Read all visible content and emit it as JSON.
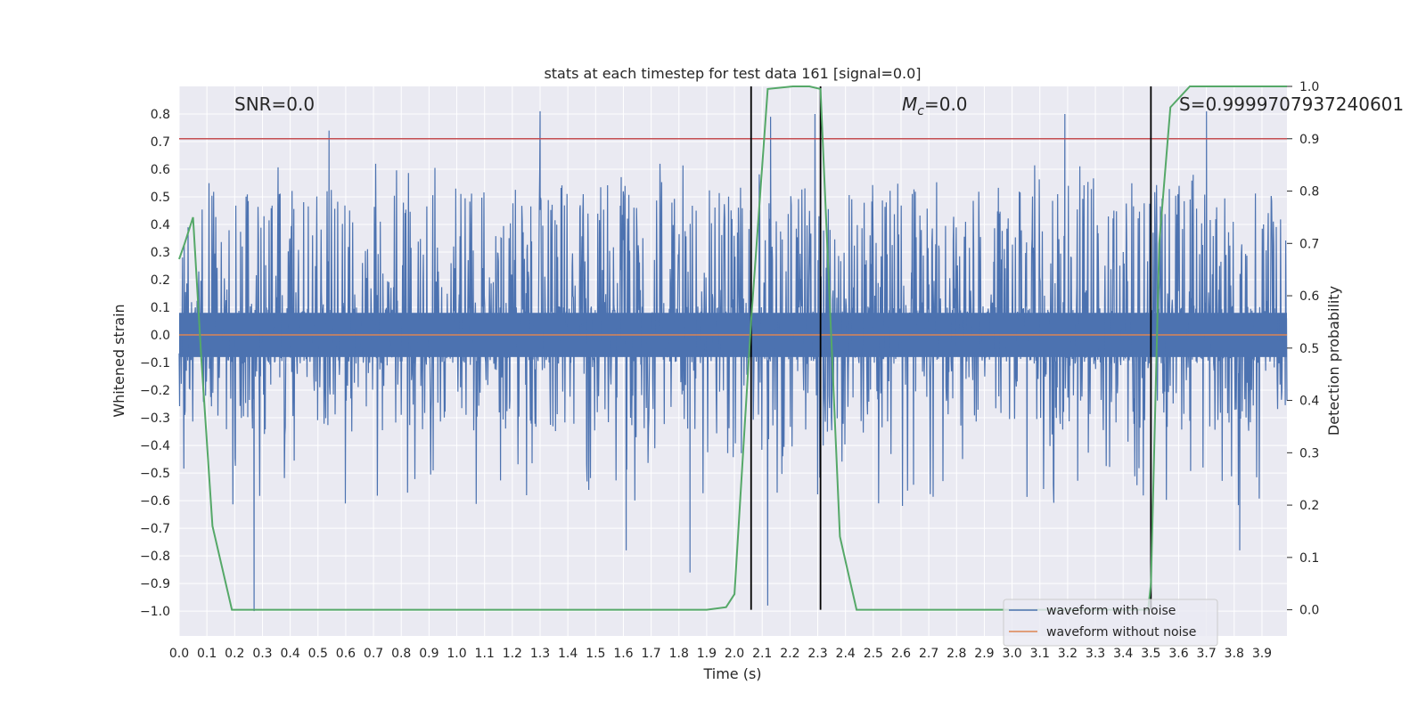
{
  "chart_data": {
    "type": "line",
    "title": "stats at each timestep for test data 161 [signal=0.0]",
    "xlabel": "Time (s)",
    "ylabel": "Whitened strain",
    "y2label": "Detection probability",
    "xlim": [
      0.0,
      3.99
    ],
    "ylim": [
      -1.09,
      0.9
    ],
    "y2lim": [
      -0.05,
      1.0
    ],
    "x_ticks": [
      "0.0",
      "0.1",
      "0.2",
      "0.3",
      "0.4",
      "0.5",
      "0.6",
      "0.7",
      "0.8",
      "0.9",
      "1.0",
      "1.1",
      "1.2",
      "1.3",
      "1.4",
      "1.5",
      "1.6",
      "1.7",
      "1.8",
      "1.9",
      "2.0",
      "2.1",
      "2.2",
      "2.3",
      "2.4",
      "2.5",
      "2.6",
      "2.7",
      "2.8",
      "2.9",
      "3.0",
      "3.1",
      "3.2",
      "3.3",
      "3.4",
      "3.5",
      "3.6",
      "3.7",
      "3.8",
      "3.9"
    ],
    "y_ticks": [
      "0.8",
      "0.7",
      "0.6",
      "0.5",
      "0.4",
      "0.3",
      "0.2",
      "0.1",
      "0.0",
      "−0.1",
      "−0.2",
      "−0.3",
      "−0.4",
      "−0.5",
      "−0.6",
      "−0.7",
      "−0.8",
      "−0.9",
      "−1.0"
    ],
    "y2_ticks": [
      "1.0",
      "0.9",
      "0.8",
      "0.7",
      "0.6",
      "0.5",
      "0.4",
      "0.3",
      "0.2",
      "0.1",
      "0.0"
    ],
    "grid": true,
    "legend_position": "lower right",
    "annotations": {
      "snr": "SNR=0.0",
      "mc_symbol": "M",
      "mc_subscript": "c",
      "mc_value": "=0.0",
      "s": "S=0.9999707937240601"
    },
    "threshold": {
      "axis": "y2",
      "value": 0.9,
      "color": "#c44e52"
    },
    "vlines_x": [
      2.06,
      2.31,
      3.5
    ],
    "series": [
      {
        "name": "waveform with noise",
        "axis": "y",
        "color": "#4c72b0",
        "kind": "noise",
        "stats": {
          "core_amplitude": 0.08,
          "typical_range": [
            -0.35,
            0.55
          ],
          "min": -1.0,
          "max": 0.81
        },
        "notable_peaks": [
          {
            "x": 0.27,
            "y": -1.0
          },
          {
            "x": 0.54,
            "y": 0.74
          },
          {
            "x": 1.3,
            "y": 0.81
          },
          {
            "x": 1.61,
            "y": -0.78
          },
          {
            "x": 1.84,
            "y": -0.86
          },
          {
            "x": 2.13,
            "y": 0.79
          },
          {
            "x": 2.12,
            "y": -0.98
          },
          {
            "x": 2.29,
            "y": 0.8
          },
          {
            "x": 3.19,
            "y": 0.8
          },
          {
            "x": 3.7,
            "y": 0.81
          },
          {
            "x": 3.82,
            "y": -0.78
          }
        ]
      },
      {
        "name": "waveform without noise",
        "axis": "y",
        "color": "#dd8452",
        "x": [
          0.0,
          3.99
        ],
        "values": [
          0.0,
          0.0
        ]
      },
      {
        "axis": "y2",
        "color": "#55a868",
        "x": [
          0.0,
          0.02,
          0.05,
          0.08,
          0.12,
          0.19,
          0.3,
          0.87,
          1.5,
          1.9,
          1.97,
          2.0,
          2.06,
          2.12,
          2.21,
          2.27,
          2.31,
          2.38,
          2.44,
          3.0,
          3.49,
          3.5,
          3.53,
          3.57,
          3.64,
          3.99
        ],
        "values": [
          0.67,
          0.7,
          0.75,
          0.48,
          0.16,
          0.0,
          0.0,
          0.0,
          0.0,
          0.0,
          0.005,
          0.03,
          0.55,
          0.995,
          1.0,
          1.0,
          0.995,
          0.14,
          0.0,
          0.0,
          0.0,
          0.05,
          0.7,
          0.96,
          1.0,
          1.0
        ]
      }
    ]
  }
}
